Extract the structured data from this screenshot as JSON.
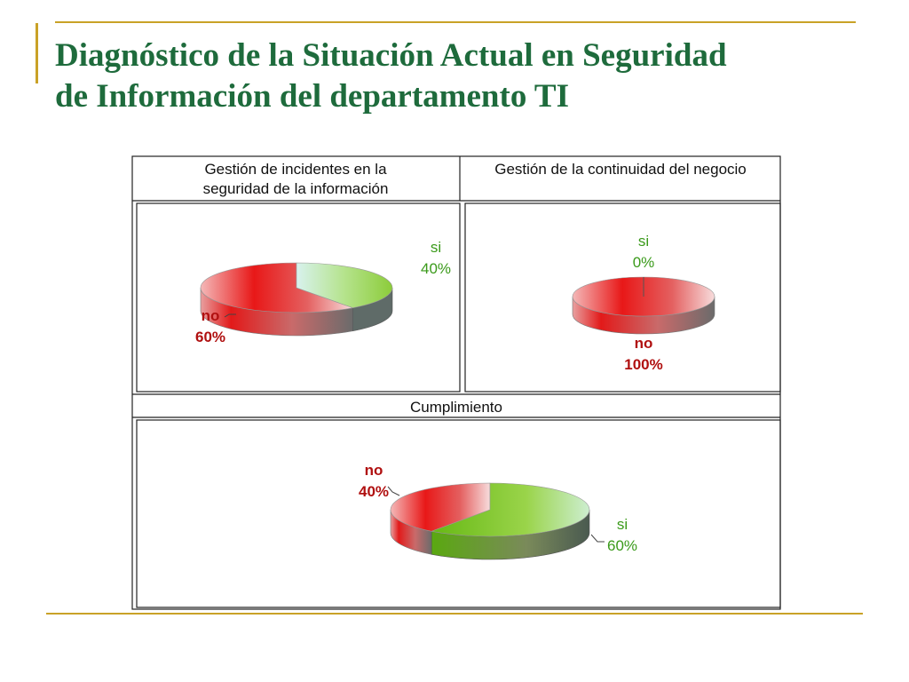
{
  "title": {
    "line1": "Diagnóstico de la Situación Actual en Seguridad",
    "line2": "de Información del departamento TI"
  },
  "colors": {
    "accent": "#c9a227",
    "title": "#1e6b3c",
    "no_label": "#b01010",
    "si_label": "#3a9a1a"
  },
  "chart_data": [
    {
      "type": "pie",
      "title": "Gestión de incidentes en la seguridad de la información",
      "title_lines": [
        "Gestión de incidentes en la",
        "seguridad de la información"
      ],
      "categories": [
        "si",
        "no"
      ],
      "values": [
        40,
        60
      ],
      "data_labels": [
        {
          "name": "si",
          "value": "40%"
        },
        {
          "name": "no",
          "value": "60%"
        }
      ]
    },
    {
      "type": "pie",
      "title": "Gestión de la continuidad del negocio",
      "title_lines": [
        "Gestión de la continuidad del negocio"
      ],
      "categories": [
        "si",
        "no"
      ],
      "values": [
        0,
        100
      ],
      "data_labels": [
        {
          "name": "si",
          "value": "0%"
        },
        {
          "name": "no",
          "value": "100%"
        }
      ]
    },
    {
      "type": "pie",
      "title": "Cumplimiento",
      "title_lines": [
        "Cumplimiento"
      ],
      "categories": [
        "no",
        "si"
      ],
      "values": [
        40,
        60
      ],
      "data_labels": [
        {
          "name": "no",
          "value": "40%"
        },
        {
          "name": "si",
          "value": "60%"
        }
      ]
    }
  ]
}
